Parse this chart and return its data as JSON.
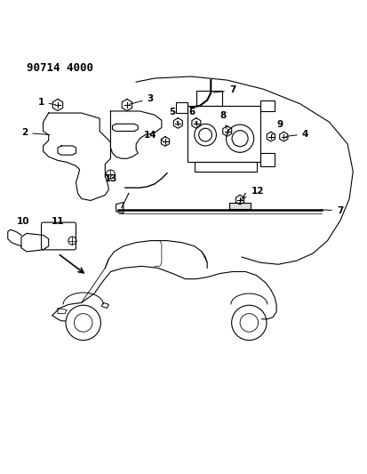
{
  "title": "90714 4000",
  "bg_color": "#ffffff",
  "line_color": "#000000",
  "title_fontsize": 9,
  "label_fontsize": 7.5,
  "figsize": [
    4.13,
    5.33
  ],
  "dpi": 100
}
